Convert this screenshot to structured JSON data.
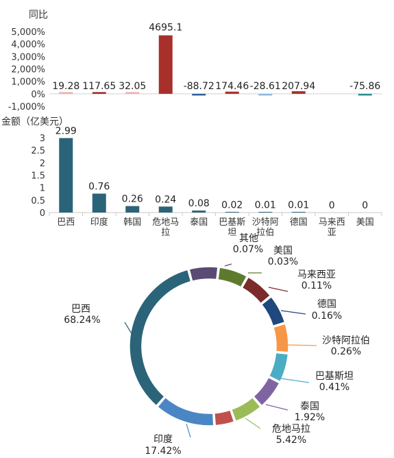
{
  "chart_data": [
    {
      "type": "bar",
      "ylabel": "同比",
      "yticks": [
        "5,000%",
        "4,000%",
        "3,000%",
        "2,000%",
        "1,000%",
        "0%",
        "-1,000%"
      ],
      "ylim": [
        -1000,
        5000
      ],
      "categories": [
        "巴西",
        "印度",
        "韩国",
        "危地马拉",
        "泰国",
        "巴基斯坦",
        "沙特阿拉伯",
        "德国",
        "马来西亚",
        "美国"
      ],
      "values": [
        19.28,
        117.65,
        32.05,
        4695.1,
        -88.72,
        174.46,
        -28.61,
        207.94,
        null,
        -75.86
      ],
      "labels": [
        "19.28",
        "117.65",
        "32.05",
        "4695.1",
        "-88.72",
        "174.46",
        "-28.61",
        "207.94",
        "",
        "-75.86"
      ],
      "colors": [
        "#f3b0ad",
        "#9b2a26",
        "#f3b0ad",
        "#a7302a",
        "#2e5f9c",
        "#a7302a",
        "#8fb8df",
        "#a7302a",
        "#4f9bd0",
        "#2a8d8e"
      ]
    },
    {
      "type": "bar",
      "ylabel": "金额（亿美元）",
      "yticks": [
        "3",
        "2.5",
        "2",
        "1.5",
        "1",
        "0.5",
        "0"
      ],
      "ylim": [
        0,
        3
      ],
      "categories": [
        "巴西",
        "印度",
        "韩国",
        "危地马拉",
        "泰国",
        "巴基斯坦",
        "沙特阿拉伯",
        "德国",
        "马来西亚",
        "美国"
      ],
      "category_lines": [
        [
          "巴西"
        ],
        [
          "印度"
        ],
        [
          "韩国"
        ],
        [
          "危地马",
          "拉"
        ],
        [
          "泰国"
        ],
        [
          "巴基斯",
          "坦"
        ],
        [
          "沙特阿",
          "拉伯"
        ],
        [
          "德国"
        ],
        [
          "马来西",
          "亚"
        ],
        [
          "美国"
        ]
      ],
      "values": [
        2.99,
        0.76,
        0.26,
        0.24,
        0.08,
        0.02,
        0.01,
        0.01,
        0,
        0
      ],
      "labels": [
        "2.99",
        "0.76",
        "0.26",
        "0.24",
        "0.08",
        "0.02",
        "0.01",
        "0.01",
        "0",
        "0"
      ],
      "color": "#2b6478"
    },
    {
      "type": "pie",
      "donut": true,
      "slices": [
        {
          "name": "巴西",
          "pct": "68.24%",
          "value": 68.24,
          "color": "#2b6478"
        },
        {
          "name": "印度",
          "pct": "17.42%",
          "value": 17.42,
          "color": "#4b86c4"
        },
        {
          "name": "",
          "pct": "",
          "value": 2.7,
          "color": "#c0504d"
        },
        {
          "name": "危地马拉",
          "pct": "5.42%",
          "value": 5.42,
          "color": "#9bbb59"
        },
        {
          "name": "泰国",
          "pct": "1.92%",
          "value": 1.92,
          "color": "#8064a2"
        },
        {
          "name": "巴基斯坦",
          "pct": "0.41%",
          "value": 0.41,
          "color": "#4bacc6"
        },
        {
          "name": "沙特阿拉伯",
          "pct": "0.26%",
          "value": 0.26,
          "color": "#f79646"
        },
        {
          "name": "德国",
          "pct": "0.16%",
          "value": 0.16,
          "color": "#1f497d"
        },
        {
          "name": "马来西亚",
          "pct": "0.11%",
          "value": 0.11,
          "color": "#7b2c2a"
        },
        {
          "name": "美国",
          "pct": "0.03%",
          "value": 0.03,
          "color": "#5e7a2e"
        },
        {
          "name": "其他",
          "pct": "0.07%",
          "value": 0.07,
          "color": "#5b4a73"
        }
      ]
    }
  ]
}
